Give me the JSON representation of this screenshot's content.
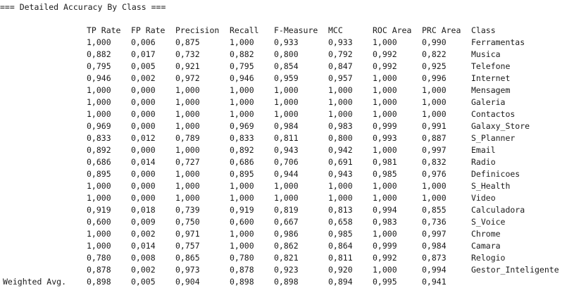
{
  "header": "=== Detailed Accuracy By Class ===",
  "columns": [
    "TP Rate",
    "FP Rate",
    "Precision",
    "Recall",
    "F-Measure",
    "MCC",
    "ROC Area",
    "PRC Area",
    "Class"
  ],
  "rows": [
    {
      "label": "",
      "values": [
        "1,000",
        "0,006",
        "0,875",
        "1,000",
        "0,933",
        "0,933",
        "1,000",
        "0,990",
        "Ferramentas"
      ]
    },
    {
      "label": "",
      "values": [
        "0,882",
        "0,017",
        "0,732",
        "0,882",
        "0,800",
        "0,792",
        "0,992",
        "0,822",
        "Musica"
      ]
    },
    {
      "label": "",
      "values": [
        "0,795",
        "0,005",
        "0,921",
        "0,795",
        "0,854",
        "0,847",
        "0,992",
        "0,925",
        "Telefone"
      ]
    },
    {
      "label": "",
      "values": [
        "0,946",
        "0,002",
        "0,972",
        "0,946",
        "0,959",
        "0,957",
        "1,000",
        "0,996",
        "Internet"
      ]
    },
    {
      "label": "",
      "values": [
        "1,000",
        "0,000",
        "1,000",
        "1,000",
        "1,000",
        "1,000",
        "1,000",
        "1,000",
        "Mensagem"
      ]
    },
    {
      "label": "",
      "values": [
        "1,000",
        "0,000",
        "1,000",
        "1,000",
        "1,000",
        "1,000",
        "1,000",
        "1,000",
        "Galeria"
      ]
    },
    {
      "label": "",
      "values": [
        "1,000",
        "0,000",
        "1,000",
        "1,000",
        "1,000",
        "1,000",
        "1,000",
        "1,000",
        "Contactos"
      ]
    },
    {
      "label": "",
      "values": [
        "0,969",
        "0,000",
        "1,000",
        "0,969",
        "0,984",
        "0,983",
        "0,999",
        "0,991",
        "Galaxy_Store"
      ]
    },
    {
      "label": "",
      "values": [
        "0,833",
        "0,012",
        "0,789",
        "0,833",
        "0,811",
        "0,800",
        "0,993",
        "0,887",
        "S_Planner"
      ]
    },
    {
      "label": "",
      "values": [
        "0,892",
        "0,000",
        "1,000",
        "0,892",
        "0,943",
        "0,942",
        "1,000",
        "0,997",
        "Email"
      ]
    },
    {
      "label": "",
      "values": [
        "0,686",
        "0,014",
        "0,727",
        "0,686",
        "0,706",
        "0,691",
        "0,981",
        "0,832",
        "Radio"
      ]
    },
    {
      "label": "",
      "values": [
        "0,895",
        "0,000",
        "1,000",
        "0,895",
        "0,944",
        "0,943",
        "0,985",
        "0,976",
        "Definicoes"
      ]
    },
    {
      "label": "",
      "values": [
        "1,000",
        "0,000",
        "1,000",
        "1,000",
        "1,000",
        "1,000",
        "1,000",
        "1,000",
        "S_Health"
      ]
    },
    {
      "label": "",
      "values": [
        "1,000",
        "0,000",
        "1,000",
        "1,000",
        "1,000",
        "1,000",
        "1,000",
        "1,000",
        "Video"
      ]
    },
    {
      "label": "",
      "values": [
        "0,919",
        "0,018",
        "0,739",
        "0,919",
        "0,819",
        "0,813",
        "0,994",
        "0,855",
        "Calculadora"
      ]
    },
    {
      "label": "",
      "values": [
        "0,600",
        "0,009",
        "0,750",
        "0,600",
        "0,667",
        "0,658",
        "0,983",
        "0,736",
        "S_Voice"
      ]
    },
    {
      "label": "",
      "values": [
        "1,000",
        "0,002",
        "0,971",
        "1,000",
        "0,986",
        "0,985",
        "1,000",
        "0,997",
        "Chrome"
      ]
    },
    {
      "label": "",
      "values": [
        "1,000",
        "0,014",
        "0,757",
        "1,000",
        "0,862",
        "0,864",
        "0,999",
        "0,984",
        "Camara"
      ]
    },
    {
      "label": "",
      "values": [
        "0,780",
        "0,008",
        "0,865",
        "0,780",
        "0,821",
        "0,811",
        "0,992",
        "0,873",
        "Relogio"
      ]
    },
    {
      "label": "",
      "values": [
        "0,878",
        "0,002",
        "0,973",
        "0,878",
        "0,923",
        "0,920",
        "1,000",
        "0,994",
        "Gestor_Inteligente"
      ]
    },
    {
      "label": "Weighted Avg.",
      "values": [
        "0,898",
        "0,005",
        "0,904",
        "0,898",
        "0,898",
        "0,894",
        "0,995",
        "0,941",
        ""
      ]
    }
  ]
}
